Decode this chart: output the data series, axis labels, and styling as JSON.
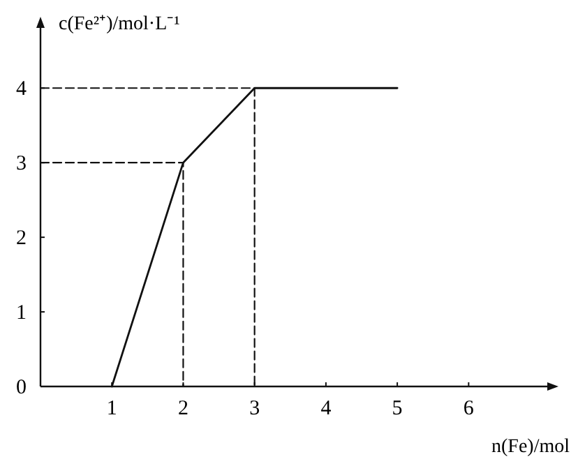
{
  "chart_data": {
    "type": "line",
    "xlabel": "n(Fe)/mol",
    "ylabel": "c(Fe²⁺)/mol·L⁻¹",
    "xlim": [
      0,
      7.2
    ],
    "ylim": [
      0,
      4.9
    ],
    "xticks": [
      1,
      2,
      3,
      4,
      5,
      6
    ],
    "yticks": [
      0,
      1,
      2,
      3,
      4
    ],
    "marker": "none",
    "series": [
      {
        "color": "#111111",
        "x": [
          1,
          2,
          3,
          5
        ],
        "values": [
          0,
          3,
          4,
          4
        ],
        "line_style": "solid"
      },
      {
        "color": "#111111",
        "x": [
          0,
          2,
          2
        ],
        "values": [
          3,
          3,
          0
        ],
        "line_style": "dashed"
      },
      {
        "color": "#111111",
        "x": [
          0,
          3,
          3
        ],
        "values": [
          4,
          4,
          0
        ],
        "line_style": "dashed"
      }
    ]
  }
}
